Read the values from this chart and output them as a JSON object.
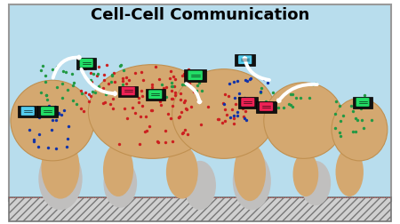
{
  "title": "Cell-Cell Communication",
  "title_fontsize": 13,
  "title_fontweight": "bold",
  "bg_color": "#b8dded",
  "border_color": "#999999",
  "fig_bg": "#ffffff",
  "cell_color": "#d4a870",
  "cell_edge": "#c09050",
  "gray_color": "#c0bfbe",
  "hatch_bg": "#d0d0d0",
  "dot_red": "#cc2020",
  "dot_green": "#229944",
  "dot_blue": "#1133aa",
  "receptor_green": "#22dd66",
  "receptor_red": "#ee2255",
  "receptor_cyan": "#55ccee",
  "receptor_size": 0.048
}
